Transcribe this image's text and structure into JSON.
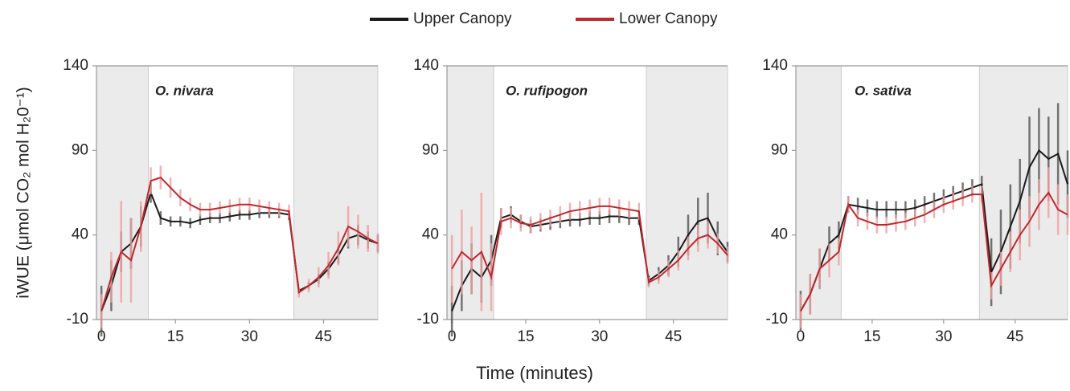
{
  "x_label": "Time (minutes)",
  "y_label": "iWUE (μmol CO₂ mol H₂0⁻¹)",
  "chart_data": [
    {
      "type": "line",
      "title": "O. nivara",
      "x": [
        0,
        2,
        4,
        6,
        8,
        10,
        12,
        14,
        16,
        18,
        20,
        22,
        24,
        26,
        28,
        30,
        32,
        34,
        36,
        38,
        40,
        42,
        44,
        46,
        48,
        50,
        52,
        54,
        56
      ],
      "xlim": [
        -1,
        56
      ],
      "ylim": [
        -10,
        140
      ],
      "xticks": [
        0,
        15,
        30,
        45
      ],
      "yticks": [
        -10,
        40,
        90,
        140
      ],
      "shaded_regions": [
        [
          -1,
          9.5
        ],
        [
          39,
          56
        ]
      ],
      "shade_color": "#ebebeb",
      "series": [
        {
          "name": "Upper Canopy",
          "color": "#1a1a1a",
          "error_color": "#555555",
          "values": [
            -5,
            10,
            30,
            35,
            45,
            65,
            50,
            48,
            48,
            47,
            49,
            50,
            50,
            51,
            52,
            52,
            53,
            53,
            53,
            52,
            7,
            10,
            14,
            20,
            28,
            38,
            40,
            37,
            35
          ],
          "errors": [
            15,
            15,
            12,
            15,
            12,
            6,
            4,
            3,
            3,
            3,
            3,
            3,
            3,
            3,
            3,
            3,
            3,
            3,
            3,
            3,
            2,
            2,
            3,
            4,
            5,
            6,
            6,
            5,
            5
          ]
        },
        {
          "name": "Lower Canopy",
          "color": "#c0282d",
          "error_color": "#f0a0a0",
          "values": [
            -5,
            15,
            30,
            25,
            45,
            72,
            74,
            68,
            62,
            58,
            55,
            55,
            56,
            57,
            58,
            58,
            57,
            56,
            55,
            54,
            6,
            10,
            15,
            22,
            32,
            45,
            42,
            38,
            35
          ],
          "errors": [
            10,
            15,
            30,
            25,
            15,
            8,
            7,
            6,
            5,
            4,
            4,
            4,
            4,
            4,
            4,
            4,
            4,
            4,
            4,
            4,
            3,
            4,
            6,
            8,
            10,
            12,
            10,
            8,
            6
          ]
        }
      ]
    },
    {
      "type": "line",
      "title": "O. rufipogon",
      "x": [
        0,
        2,
        4,
        6,
        8,
        10,
        12,
        14,
        16,
        18,
        20,
        22,
        24,
        26,
        28,
        30,
        32,
        34,
        36,
        38,
        40,
        42,
        44,
        46,
        48,
        50,
        52,
        54,
        56
      ],
      "xlim": [
        -1,
        56
      ],
      "ylim": [
        -10,
        140
      ],
      "xticks": [
        0,
        15,
        30,
        45
      ],
      "yticks": [
        -10,
        40,
        90,
        140
      ],
      "shaded_regions": [
        [
          -1,
          8.5
        ],
        [
          39.5,
          56
        ]
      ],
      "shade_color": "#ebebeb",
      "series": [
        {
          "color": "#1a1a1a",
          "error_color": "#555555",
          "values": [
            -5,
            10,
            20,
            15,
            25,
            50,
            52,
            48,
            45,
            46,
            47,
            48,
            49,
            49,
            50,
            50,
            51,
            51,
            50,
            50,
            13,
            17,
            22,
            30,
            40,
            48,
            50,
            38,
            30
          ],
          "errors": [
            15,
            15,
            15,
            15,
            15,
            6,
            5,
            4,
            4,
            4,
            4,
            4,
            4,
            4,
            4,
            4,
            4,
            4,
            4,
            4,
            3,
            4,
            6,
            9,
            12,
            14,
            15,
            10,
            6
          ]
        },
        {
          "color": "#c0282d",
          "error_color": "#f0a0a0",
          "values": [
            20,
            30,
            25,
            30,
            15,
            48,
            50,
            47,
            46,
            48,
            50,
            52,
            54,
            55,
            56,
            57,
            57,
            56,
            55,
            54,
            12,
            15,
            20,
            25,
            32,
            38,
            40,
            35,
            28
          ],
          "errors": [
            20,
            25,
            20,
            35,
            20,
            8,
            6,
            5,
            5,
            5,
            5,
            5,
            5,
            5,
            5,
            5,
            5,
            5,
            5,
            5,
            3,
            4,
            5,
            6,
            7,
            8,
            8,
            6,
            5
          ]
        }
      ]
    },
    {
      "type": "line",
      "title": "O. sativa",
      "x": [
        0,
        2,
        4,
        6,
        8,
        10,
        12,
        14,
        16,
        18,
        20,
        22,
        24,
        26,
        28,
        30,
        32,
        34,
        36,
        38,
        40,
        42,
        44,
        46,
        48,
        50,
        52,
        54,
        56
      ],
      "xlim": [
        -1,
        56
      ],
      "ylim": [
        -10,
        140
      ],
      "xticks": [
        0,
        15,
        30,
        45
      ],
      "yticks": [
        -10,
        40,
        90,
        140
      ],
      "shaded_regions": [
        [
          -1,
          8.5
        ],
        [
          37.5,
          56
        ]
      ],
      "shade_color": "#ebebeb",
      "series": [
        {
          "color": "#1a1a1a",
          "error_color": "#555555",
          "values": [
            -5,
            5,
            20,
            35,
            40,
            58,
            57,
            56,
            55,
            55,
            55,
            55,
            56,
            58,
            60,
            62,
            64,
            66,
            68,
            70,
            18,
            30,
            45,
            60,
            80,
            90,
            85,
            88,
            70
          ],
          "errors": [
            12,
            12,
            12,
            10,
            8,
            5,
            5,
            5,
            5,
            5,
            5,
            5,
            5,
            5,
            5,
            5,
            5,
            5,
            5,
            5,
            20,
            25,
            25,
            25,
            30,
            25,
            25,
            30,
            20
          ]
        },
        {
          "color": "#c0282d",
          "error_color": "#f0a0a0",
          "values": [
            -5,
            5,
            20,
            25,
            30,
            58,
            50,
            48,
            46,
            46,
            47,
            48,
            50,
            52,
            55,
            58,
            60,
            62,
            64,
            64,
            10,
            20,
            30,
            40,
            48,
            58,
            65,
            55,
            52
          ],
          "errors": [
            10,
            12,
            12,
            10,
            8,
            5,
            5,
            5,
            5,
            5,
            5,
            5,
            5,
            5,
            5,
            5,
            5,
            5,
            5,
            5,
            8,
            10,
            12,
            15,
            15,
            15,
            15,
            15,
            12
          ]
        }
      ]
    }
  ]
}
